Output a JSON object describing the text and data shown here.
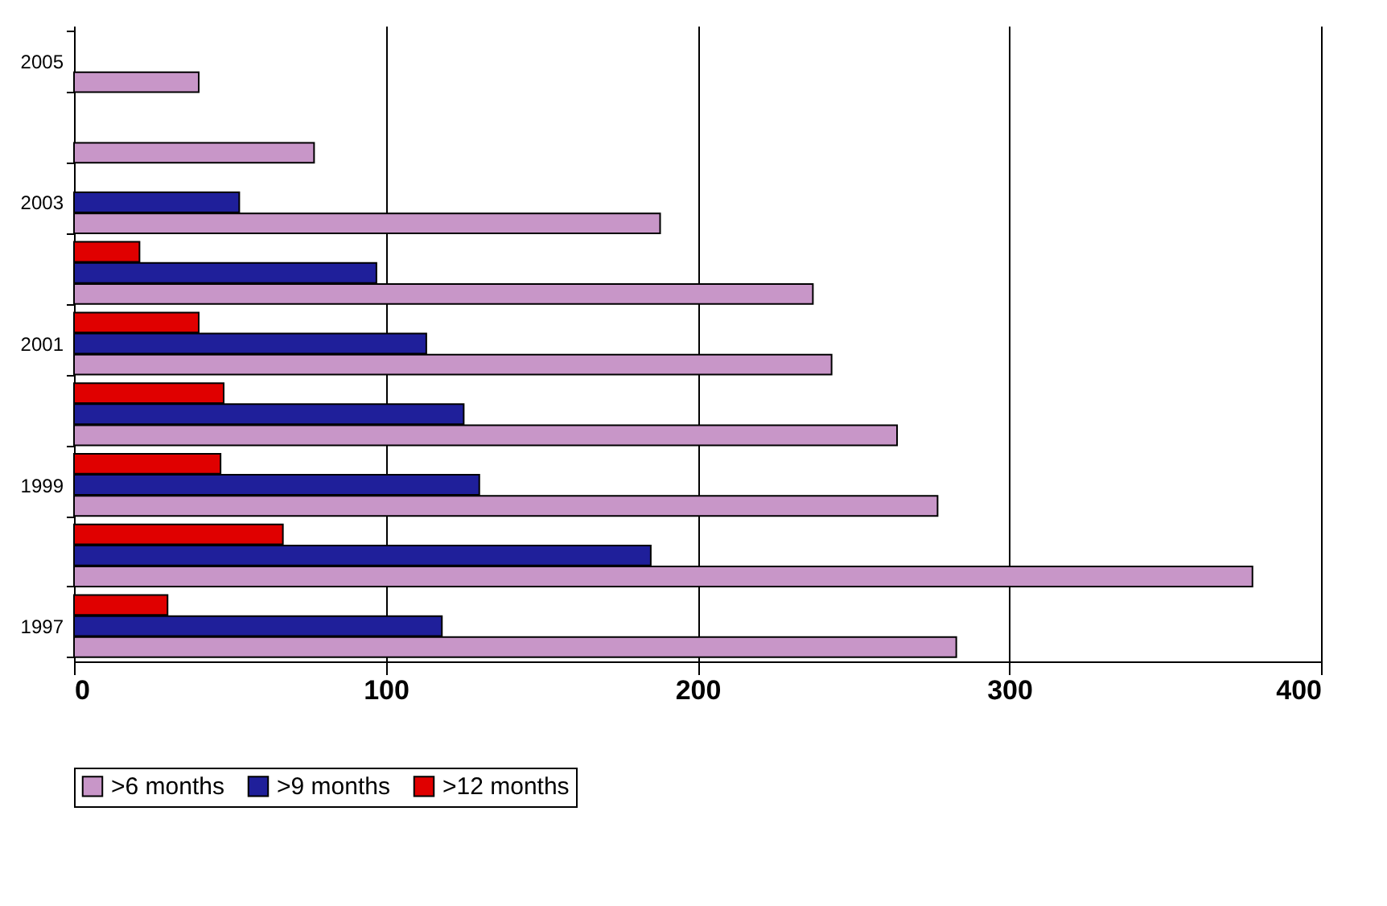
{
  "chart_data": {
    "type": "bar",
    "orientation": "horizontal",
    "categories": [
      "2005",
      null,
      "2003",
      null,
      "2001",
      null,
      "1999",
      null,
      "1997"
    ],
    "series": [
      {
        "name": ">6 months",
        "color": "#c896c8",
        "values": [
          40,
          77,
          188,
          237,
          243,
          264,
          277,
          378,
          283
        ]
      },
      {
        "name": ">9 months",
        "color": "#1f1f9a",
        "values": [
          null,
          null,
          53,
          97,
          113,
          125,
          130,
          185,
          118
        ]
      },
      {
        "name": ">12 months",
        "color": "#e00000",
        "values": [
          null,
          null,
          null,
          21,
          40,
          48,
          47,
          67,
          30
        ]
      }
    ],
    "xlim": [
      0,
      400
    ],
    "xticks": [
      0,
      100,
      200,
      300,
      400
    ],
    "grid": "x",
    "legend": "bottom"
  }
}
